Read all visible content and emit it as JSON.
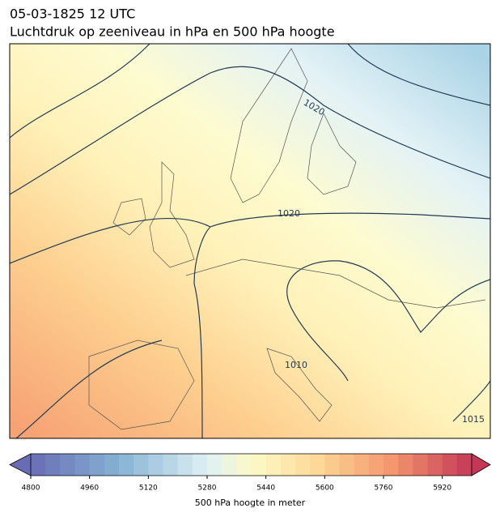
{
  "header": {
    "time": "05-03-1825 12 UTC",
    "title": "Luchtdruk op zeeniveau in hPa en 500 hPa hoogte"
  },
  "map": {
    "isobar_labels": [
      "1020",
      "1020",
      "1010",
      "1015"
    ]
  },
  "colorbar": {
    "lim": [
      4800,
      6000
    ],
    "ticks": [
      4800,
      4960,
      5120,
      5280,
      5440,
      5600,
      5760,
      5920
    ],
    "label": "500 hPa hoogte in meter"
  }
}
